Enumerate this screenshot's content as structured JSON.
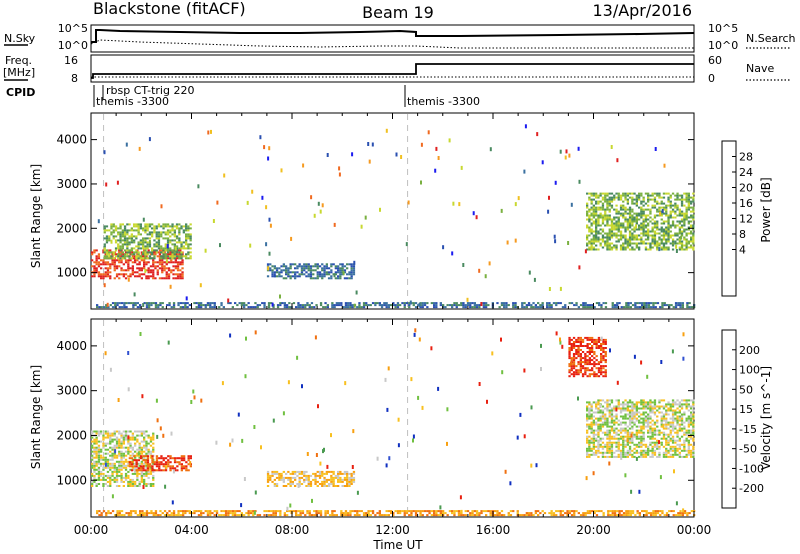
{
  "header": {
    "station": "Blackstone (fitACF)",
    "beam": "Beam 19",
    "date": "13/Apr/2016"
  },
  "panels": {
    "noise": {
      "left_label": "N.Sky",
      "right_label": "N.Search",
      "left_ticks": [
        "10^5",
        "10^0"
      ],
      "right_ticks": [
        "10^5",
        "10^0"
      ]
    },
    "freq": {
      "left_label_1": "Freq.",
      "left_label_2": "[MHz]",
      "right_label": "Nave",
      "left_ticks": [
        "16",
        "8"
      ],
      "right_ticks": [
        "60",
        "0"
      ]
    },
    "cpid": {
      "label": "CPID",
      "entries": [
        "rbsp CT-trig 220",
        "themis -3300",
        "themis -3300"
      ]
    }
  },
  "chart_data": [
    {
      "type": "heatmap",
      "title": "",
      "xlabel": "",
      "ylabel": "Slant Range [km]",
      "x_ticks": [
        "00:00",
        "04:00",
        "08:00",
        "12:00",
        "16:00",
        "20:00",
        "00:00"
      ],
      "y_ticks": [
        "1000",
        "2000",
        "3000",
        "4000"
      ],
      "xlim_hours": [
        0,
        24
      ],
      "ylim_km": [
        180,
        4600
      ],
      "colorbar": {
        "label": "Power [dB]",
        "ticks": [
          "28",
          "24",
          "20",
          "16",
          "12",
          "8",
          "4"
        ],
        "colors": [
          "#1b1bf0",
          "#2a4fb0",
          "#3a70a0",
          "#4a8a60",
          "#7ab040",
          "#c8d830",
          "#f0c020",
          "#f59a20",
          "#f06a20",
          "#e02020"
        ]
      },
      "regions": [
        {
          "name": "near-range low power",
          "t": [
            0.2,
            24
          ],
          "r": [
            200,
            320
          ],
          "level": 2
        },
        {
          "name": "early morning strong echoes",
          "t": [
            0,
            3.6
          ],
          "r": [
            850,
            1500
          ],
          "level": 9
        },
        {
          "name": "early morning band",
          "t": [
            0.5,
            4
          ],
          "r": [
            1300,
            2100
          ],
          "level": 4
        },
        {
          "name": "mid-morning band",
          "t": [
            7,
            10.5
          ],
          "r": [
            850,
            1200
          ],
          "level": 2
        },
        {
          "name": "evening echoes",
          "t": [
            19.7,
            24
          ],
          "r": [
            1500,
            2800
          ],
          "level": 4
        }
      ]
    },
    {
      "type": "heatmap",
      "title": "",
      "xlabel": "Time UT",
      "ylabel": "Slant Range [km]",
      "x_ticks": [
        "00:00",
        "04:00",
        "08:00",
        "12:00",
        "16:00",
        "20:00",
        "00:00"
      ],
      "y_ticks": [
        "1000",
        "2000",
        "3000",
        "4000"
      ],
      "xlim_hours": [
        0,
        24
      ],
      "ylim_km": [
        180,
        4600
      ],
      "colorbar": {
        "label": "Velocity [m s^-1]",
        "ticks": [
          "200",
          "100",
          "50",
          "15",
          "-15",
          "-50",
          "-100",
          "-200"
        ],
        "colors": [
          "#1030c0",
          "#3050d0",
          "#4a9a50",
          "#70c040",
          "#c8c8c8",
          "#f8c020",
          "#f8a010",
          "#f07010",
          "#e82010"
        ]
      },
      "regions": [
        {
          "name": "near-range flow",
          "t": [
            0.2,
            24
          ],
          "r": [
            200,
            320
          ],
          "level": 6
        },
        {
          "name": "early morning mixed",
          "t": [
            0,
            2.5
          ],
          "r": [
            850,
            2100
          ],
          "level": 4
        },
        {
          "name": "early morning receding",
          "t": [
            1.5,
            4
          ],
          "r": [
            1200,
            1550
          ],
          "level": 8
        },
        {
          "name": "mid-morning band",
          "t": [
            7,
            10.5
          ],
          "r": [
            850,
            1200
          ],
          "level": 5
        },
        {
          "name": "evening echoes",
          "t": [
            19.7,
            24
          ],
          "r": [
            1500,
            2800
          ],
          "level": 4
        },
        {
          "name": "late far-range approaching",
          "t": [
            19,
            20.5
          ],
          "r": [
            3300,
            4200
          ],
          "level": 8
        }
      ]
    }
  ]
}
